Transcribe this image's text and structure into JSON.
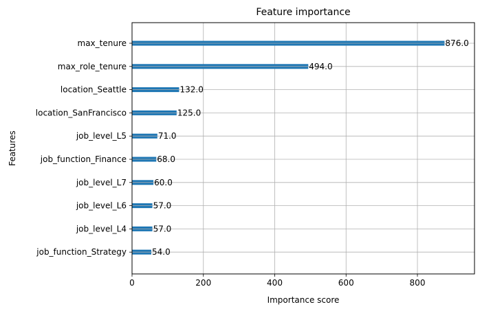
{
  "chart_data": {
    "type": "bar",
    "orientation": "horizontal",
    "title": "Feature importance",
    "xlabel": "Importance score",
    "ylabel": "Features",
    "categories": [
      "max_tenure",
      "max_role_tenure",
      "location_Seattle",
      "location_SanFrancisco",
      "job_level_L5",
      "job_function_Finance",
      "job_level_L7",
      "job_level_L6",
      "job_level_L4",
      "job_function_Strategy"
    ],
    "values": [
      876,
      494,
      132,
      125,
      71,
      68,
      60,
      57,
      57,
      54
    ],
    "value_labels": [
      "876.0",
      "494.0",
      "132.0",
      "125.0",
      "71.0",
      "68.0",
      "60.0",
      "57.0",
      "57.0",
      "54.0"
    ],
    "xlim": [
      0,
      960
    ],
    "xticks": [
      0,
      200,
      400,
      600,
      800
    ],
    "xtick_labels": [
      "0",
      "200",
      "400",
      "600",
      "800"
    ],
    "grid": true,
    "bar_color": "#1f77b4",
    "grid_color": "#b0b0b0"
  }
}
